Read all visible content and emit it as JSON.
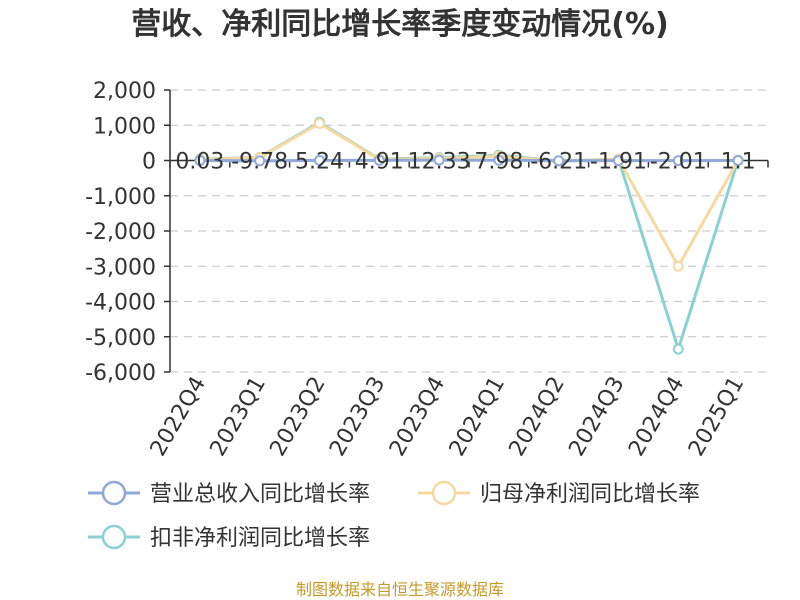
{
  "chart_data": {
    "type": "line",
    "title": "营收、净利同比增长率季度变动情况(%)",
    "categories": [
      "2022Q4",
      "2023Q1",
      "2023Q2",
      "2023Q3",
      "2023Q4",
      "2024Q1",
      "2024Q2",
      "2024Q3",
      "2024Q4",
      "2025Q1"
    ],
    "series": [
      {
        "name": "营业总收入同比增长率",
        "color": "#8fa9d8",
        "values": [
          0.03,
          -9.78,
          5.24,
          4.91,
          12.33,
          7.98,
          -6.21,
          -1.91,
          -2.01,
          1.1
        ]
      },
      {
        "name": "归母净利润同比增长率",
        "color": "#f7d9a0",
        "values": [
          30,
          80,
          1050,
          30,
          60,
          120,
          -20,
          40,
          -3000,
          10
        ]
      },
      {
        "name": "扣非净利润同比增长率",
        "color": "#8ad1d3",
        "values": [
          40,
          90,
          1080,
          40,
          80,
          150,
          -10,
          40,
          -5350,
          10
        ]
      }
    ],
    "data_labels": [
      "0.03",
      "-9.78",
      "5.24",
      "4.91",
      "12.33",
      "7.98",
      "-6.21",
      "-1.91",
      "-2.01",
      "1.1"
    ],
    "y_ticks": [
      "2,000",
      "1,000",
      "0",
      "-1,000",
      "-2,000",
      "-3,000",
      "-4,000",
      "-5,000",
      "-6,000"
    ],
    "ylim": [
      -6000,
      2000
    ],
    "grid": true,
    "legend_position": "bottom"
  },
  "source_text": "制图数据来自恒生聚源数据库"
}
